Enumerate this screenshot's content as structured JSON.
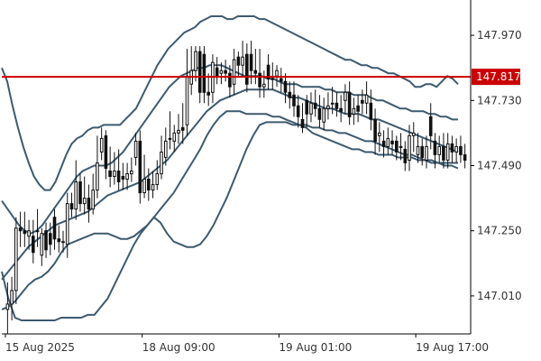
{
  "chart_data": {
    "type": "candlestick",
    "title": "",
    "xlabel": "",
    "ylabel": "",
    "y_ticks": [
      "147.970",
      "147.730",
      "147.490",
      "147.250",
      "147.010"
    ],
    "y_tick_values": [
      147.97,
      147.73,
      147.49,
      147.25,
      147.01
    ],
    "ylim": [
      146.87,
      148.1
    ],
    "x_ticks": [
      "15 Aug 2025",
      "18 Aug 09:00",
      "19 Aug 01:00",
      "19 Aug 17:00"
    ],
    "x_tick_bar_index": [
      0,
      32,
      64,
      96
    ],
    "grid": false,
    "horizontal_line": {
      "value": 147.817,
      "label": "147.817",
      "color": "#cc0000"
    },
    "colors": {
      "axis": "#000000",
      "bands": "#3d5a6e",
      "candle": "#111111",
      "level": "#cc0000",
      "text": "#333333"
    },
    "candles": {
      "open": [
        146.96,
        146.98,
        147.03,
        147.26,
        147.25,
        147.23,
        147.23,
        147.25,
        147.16,
        147.25,
        147.24,
        147.3,
        147.22,
        147.21,
        147.2,
        147.35,
        147.33,
        147.43,
        147.35,
        147.37,
        147.33,
        147.4,
        147.54,
        147.6,
        147.47,
        147.45,
        147.47,
        147.45,
        147.44,
        147.46,
        147.52,
        147.58,
        147.39,
        147.44,
        147.4,
        147.42,
        147.46,
        147.52,
        147.59,
        147.58,
        147.61,
        147.63,
        147.64,
        147.79,
        147.84,
        147.91,
        147.9,
        147.76,
        147.76,
        147.85,
        147.83,
        147.84,
        147.83,
        147.79,
        147.89,
        147.86,
        147.9,
        147.9,
        147.84,
        147.83,
        147.78,
        147.86,
        147.81,
        147.82,
        147.81,
        147.8,
        147.76,
        147.75,
        147.71,
        147.66,
        147.73,
        147.68,
        147.72,
        147.7,
        147.65,
        147.7,
        147.72,
        147.72,
        147.7,
        147.73,
        147.76,
        147.68,
        147.71,
        147.73,
        147.72,
        147.72,
        147.66,
        147.6,
        147.58,
        147.56,
        147.58,
        147.58,
        147.56,
        147.55,
        147.51,
        147.6,
        147.53,
        147.56,
        147.51,
        147.67,
        147.58,
        147.53,
        147.56,
        147.51,
        147.57,
        147.54,
        147.56,
        147.53
      ],
      "close": [
        146.98,
        147.03,
        147.26,
        147.25,
        147.24,
        147.25,
        147.17,
        147.25,
        147.24,
        147.18,
        147.2,
        147.22,
        147.21,
        147.21,
        147.35,
        147.33,
        147.43,
        147.35,
        147.37,
        147.33,
        147.4,
        147.5,
        147.59,
        147.48,
        147.45,
        147.47,
        147.43,
        147.44,
        147.46,
        147.47,
        147.58,
        147.39,
        147.44,
        147.4,
        147.42,
        147.46,
        147.54,
        147.58,
        147.59,
        147.61,
        147.62,
        147.62,
        147.82,
        147.84,
        147.91,
        147.76,
        147.76,
        147.75,
        147.87,
        147.82,
        147.84,
        147.83,
        147.78,
        147.88,
        147.86,
        147.89,
        147.79,
        147.84,
        147.83,
        147.78,
        147.79,
        147.81,
        147.81,
        147.84,
        147.8,
        147.76,
        147.74,
        147.71,
        147.67,
        147.63,
        147.68,
        147.72,
        147.7,
        147.66,
        147.7,
        147.71,
        147.72,
        147.7,
        147.69,
        147.76,
        147.67,
        147.7,
        147.69,
        147.72,
        147.75,
        147.66,
        147.58,
        147.61,
        147.56,
        147.59,
        147.57,
        147.54,
        147.56,
        147.5,
        147.6,
        147.61,
        147.56,
        147.52,
        147.56,
        147.6,
        147.53,
        147.56,
        147.51,
        147.57,
        147.54,
        147.56,
        147.53,
        147.51
      ],
      "high": [
        147.06,
        147.08,
        147.3,
        147.32,
        147.32,
        147.29,
        147.29,
        147.33,
        147.26,
        147.28,
        147.28,
        147.33,
        147.27,
        147.25,
        147.39,
        147.39,
        147.51,
        147.46,
        147.45,
        147.42,
        147.46,
        147.6,
        147.63,
        147.62,
        147.56,
        147.54,
        147.55,
        147.5,
        147.5,
        147.52,
        147.61,
        147.62,
        147.53,
        147.48,
        147.47,
        147.51,
        147.6,
        147.63,
        147.69,
        147.64,
        147.68,
        147.72,
        147.92,
        147.93,
        147.93,
        147.93,
        147.93,
        147.83,
        147.9,
        147.89,
        147.87,
        147.88,
        147.86,
        147.92,
        147.91,
        147.95,
        147.94,
        147.95,
        147.92,
        147.92,
        147.84,
        147.9,
        147.87,
        147.86,
        147.85,
        147.83,
        147.8,
        147.8,
        147.75,
        147.72,
        147.75,
        147.76,
        147.77,
        147.75,
        147.74,
        147.76,
        147.78,
        147.76,
        147.75,
        147.79,
        147.8,
        147.74,
        147.75,
        147.77,
        147.8,
        147.77,
        147.7,
        147.65,
        147.62,
        147.63,
        147.62,
        147.6,
        147.61,
        147.58,
        147.64,
        147.65,
        147.61,
        147.59,
        147.6,
        147.72,
        147.61,
        147.6,
        147.61,
        147.61,
        147.6,
        147.59,
        147.6,
        147.57
      ],
      "low": [
        146.87,
        146.92,
        146.98,
        147.19,
        147.19,
        147.18,
        147.13,
        147.19,
        147.12,
        147.15,
        147.16,
        147.18,
        147.17,
        147.17,
        147.15,
        147.3,
        147.29,
        147.32,
        147.31,
        147.28,
        147.31,
        147.37,
        147.51,
        147.44,
        147.41,
        147.42,
        147.4,
        147.4,
        147.4,
        147.43,
        147.49,
        147.35,
        147.37,
        147.36,
        147.37,
        147.4,
        147.44,
        147.49,
        147.55,
        147.54,
        147.57,
        147.57,
        147.6,
        147.75,
        147.8,
        147.72,
        147.72,
        147.71,
        147.72,
        147.79,
        147.79,
        147.8,
        147.74,
        147.75,
        147.82,
        147.82,
        147.76,
        147.79,
        147.79,
        147.74,
        147.74,
        147.77,
        147.77,
        147.78,
        147.76,
        147.72,
        147.7,
        147.67,
        147.63,
        147.61,
        147.63,
        147.65,
        147.67,
        147.63,
        147.62,
        147.66,
        147.68,
        147.67,
        147.65,
        147.68,
        147.64,
        147.64,
        147.65,
        147.68,
        147.68,
        147.62,
        147.53,
        147.54,
        147.52,
        147.53,
        147.53,
        147.51,
        147.51,
        147.47,
        147.47,
        147.54,
        147.5,
        147.49,
        147.48,
        147.55,
        147.48,
        147.5,
        147.48,
        147.48,
        147.5,
        147.5,
        147.5,
        147.48
      ]
    },
    "bands": {
      "outer_upper": [
        147.85,
        147.8,
        147.71,
        147.63,
        147.56,
        147.5,
        147.45,
        147.42,
        147.4,
        147.4,
        147.43,
        147.48,
        147.53,
        147.57,
        147.59,
        147.6,
        147.62,
        147.63,
        147.63,
        147.64,
        147.64,
        147.64,
        147.64,
        147.66,
        147.68,
        147.7,
        147.74,
        147.78,
        147.82,
        147.86,
        147.89,
        147.92,
        147.94,
        147.96,
        147.98,
        147.99,
        148.0,
        148.02,
        148.03,
        148.04,
        148.04,
        148.04,
        148.03,
        148.03,
        148.04,
        148.04,
        148.04,
        148.04,
        148.03,
        148.03,
        148.02,
        148.01,
        148.0,
        147.99,
        147.98,
        147.97,
        147.96,
        147.95,
        147.94,
        147.93,
        147.92,
        147.91,
        147.9,
        147.89,
        147.88,
        147.88,
        147.87,
        147.86,
        147.86,
        147.85,
        147.85,
        147.84,
        147.83,
        147.83,
        147.82,
        147.81,
        147.8,
        147.78,
        147.78,
        147.79,
        147.79,
        147.78,
        147.8,
        147.82,
        147.81,
        147.79
      ],
      "mid_upper": [
        147.36,
        147.33,
        147.3,
        147.27,
        147.25,
        147.24,
        147.25,
        147.27,
        147.3,
        147.33,
        147.36,
        147.39,
        147.42,
        147.45,
        147.47,
        147.48,
        147.49,
        147.49,
        147.49,
        147.5,
        147.52,
        147.54,
        147.57,
        147.6,
        147.63,
        147.66,
        147.69,
        147.72,
        147.75,
        147.78,
        147.8,
        147.82,
        147.83,
        147.84,
        147.85,
        147.85,
        147.86,
        147.86,
        147.86,
        147.85,
        147.84,
        147.83,
        147.82,
        147.82,
        147.82,
        147.82,
        147.81,
        147.81,
        147.8,
        147.79,
        147.79,
        147.79,
        147.78,
        147.78,
        147.78,
        147.78,
        147.77,
        147.77,
        147.76,
        147.76,
        147.76,
        147.75,
        147.75,
        147.75,
        147.74,
        147.73,
        147.73,
        147.72,
        147.71,
        147.7,
        147.7,
        147.69,
        147.69,
        147.69,
        147.68,
        147.68,
        147.67,
        147.67,
        147.66,
        147.66
      ],
      "middle": [
        147.07,
        147.1,
        147.13,
        147.16,
        147.19,
        147.21,
        147.23,
        147.25,
        147.27,
        147.28,
        147.29,
        147.3,
        147.31,
        147.32,
        147.34,
        147.36,
        147.38,
        147.39,
        147.4,
        147.41,
        147.42,
        147.43,
        147.45,
        147.47,
        147.49,
        147.51,
        147.54,
        147.57,
        147.6,
        147.63,
        147.66,
        147.69,
        147.71,
        147.73,
        147.74,
        147.75,
        147.76,
        147.77,
        147.77,
        147.77,
        147.77,
        147.77,
        147.76,
        147.75,
        147.74,
        147.74,
        147.73,
        147.72,
        147.71,
        147.7,
        147.7,
        147.69,
        147.68,
        147.68,
        147.68,
        147.67,
        147.66,
        147.66,
        147.65,
        147.64,
        147.63,
        147.62,
        147.61,
        147.6,
        147.59,
        147.58,
        147.57,
        147.56,
        147.55,
        147.54
      ],
      "mid_lower": [
        146.96,
        146.97,
        146.99,
        147.02,
        147.05,
        147.07,
        147.08,
        147.1,
        147.13,
        147.17,
        147.2,
        147.21,
        147.22,
        147.23,
        147.24,
        147.24,
        147.24,
        147.23,
        147.22,
        147.22,
        147.23,
        147.25,
        147.27,
        147.3,
        147.33,
        147.36,
        147.39,
        147.43,
        147.47,
        147.51,
        147.55,
        147.6,
        147.64,
        147.67,
        147.69,
        147.69,
        147.69,
        147.68,
        147.68,
        147.68,
        147.68,
        147.67,
        147.67,
        147.66,
        147.65,
        147.64,
        147.63,
        147.61,
        147.6,
        147.59,
        147.58,
        147.57,
        147.56,
        147.55,
        147.55,
        147.54,
        147.54,
        147.53,
        147.53,
        147.53,
        147.52,
        147.52,
        147.52,
        147.51,
        147.51,
        147.51,
        147.5,
        147.5,
        147.5,
        147.5
      ],
      "outer_lower": [
        147.1,
        147.0,
        146.93,
        146.92,
        146.92,
        146.92,
        146.92,
        146.92,
        146.92,
        146.93,
        146.93,
        146.93,
        146.93,
        146.94,
        146.94,
        146.97,
        147.0,
        147.05,
        147.1,
        147.15,
        147.2,
        147.24,
        147.27,
        147.3,
        147.28,
        147.24,
        147.21,
        147.2,
        147.19,
        147.19,
        147.2,
        147.23,
        147.27,
        147.32,
        147.37,
        147.43,
        147.49,
        147.55,
        147.6,
        147.64,
        147.65,
        147.65,
        147.65,
        147.65,
        147.64,
        147.64,
        147.64,
        147.63,
        147.63,
        147.62,
        147.62,
        147.61,
        147.61,
        147.6,
        147.59,
        147.58,
        147.58,
        147.57,
        147.56,
        147.55,
        147.54,
        147.53,
        147.53,
        147.52,
        147.51,
        147.5,
        147.5,
        147.49,
        147.49,
        147.48
      ]
    }
  }
}
